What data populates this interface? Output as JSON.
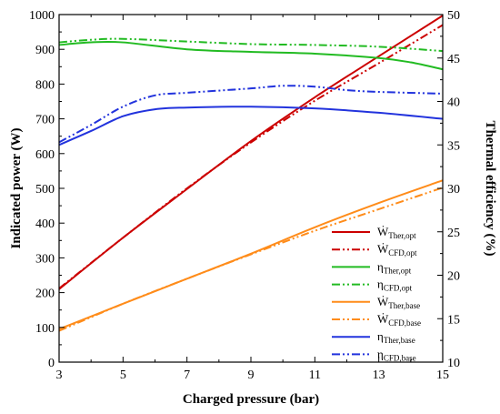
{
  "chart_data": {
    "type": "line",
    "xlabel": "Charged pressure (bar)",
    "ylabel": "Indicated power (W)",
    "y2label": "Thermal efficiency (%)",
    "xlim": [
      3,
      15
    ],
    "ylim": [
      0,
      1000
    ],
    "y2lim": [
      10,
      50
    ],
    "xticks": [
      "3",
      "5",
      "7",
      "9",
      "11",
      "13",
      "15"
    ],
    "yticks": [
      "0",
      "100",
      "200",
      "300",
      "400",
      "500",
      "600",
      "700",
      "800",
      "900",
      "1000"
    ],
    "y2ticks": [
      "10",
      "15",
      "20",
      "25",
      "30",
      "35",
      "40",
      "45",
      "50"
    ],
    "grid": false,
    "legend_position": "bottom-right",
    "series": [
      {
        "name": "Ẇ",
        "sub": "Ther,opt",
        "axis": "left",
        "color": "#cc0000",
        "dash": "solid",
        "x": [
          3,
          5,
          7,
          9,
          11,
          13,
          15
        ],
        "y": [
          210,
          358,
          498,
          636,
          762,
          880,
          997
        ]
      },
      {
        "name": "Ẇ",
        "sub": "CFD,opt",
        "axis": "left",
        "color": "#cc0000",
        "dash": "dashdotdot",
        "x": [
          3,
          5,
          7,
          9,
          11,
          13,
          15
        ],
        "y": [
          212,
          358,
          500,
          632,
          752,
          860,
          970
        ]
      },
      {
        "name": "η",
        "sub": "Ther,opt",
        "axis": "right",
        "color": "#22bb22",
        "dash": "solid",
        "x": [
          3,
          4,
          5,
          7,
          9,
          11,
          13,
          14,
          15
        ],
        "y": [
          46.5,
          46.8,
          46.8,
          46.0,
          45.7,
          45.5,
          45.0,
          44.5,
          43.7
        ]
      },
      {
        "name": "η",
        "sub": "CFD,opt",
        "axis": "right",
        "color": "#22bb22",
        "dash": "dashdotdot",
        "x": [
          3,
          4,
          5,
          7,
          9,
          11,
          13,
          15
        ],
        "y": [
          46.8,
          47.1,
          47.2,
          46.9,
          46.6,
          46.5,
          46.3,
          45.8
        ]
      },
      {
        "name": "Ẇ",
        "sub": "Ther,base",
        "axis": "left",
        "color": "#ff8c1a",
        "dash": "solid",
        "x": [
          3,
          5,
          7,
          9,
          11,
          13,
          15
        ],
        "y": [
          95,
          168,
          240,
          312,
          388,
          458,
          523
        ]
      },
      {
        "name": "Ẇ",
        "sub": "CFD,base",
        "axis": "left",
        "color": "#ff8c1a",
        "dash": "dashdotdot",
        "x": [
          3,
          5,
          7,
          9,
          11,
          13,
          15
        ],
        "y": [
          90,
          168,
          240,
          310,
          378,
          440,
          502
        ]
      },
      {
        "name": "η",
        "sub": "Ther,base",
        "axis": "right",
        "color": "#2233dd",
        "dash": "solid",
        "x": [
          3,
          4,
          5,
          6,
          7,
          9,
          11,
          13,
          15
        ],
        "y": [
          35.0,
          36.6,
          38.3,
          39.1,
          39.3,
          39.4,
          39.2,
          38.7,
          38.0
        ]
      },
      {
        "name": "η",
        "sub": "CFD,base",
        "axis": "right",
        "color": "#2233dd",
        "dash": "dashdotdot",
        "x": [
          3,
          4,
          5,
          6,
          7,
          9,
          10,
          11,
          12,
          13,
          15
        ],
        "y": [
          35.3,
          37.3,
          39.4,
          40.7,
          41.0,
          41.5,
          41.8,
          41.7,
          41.3,
          41.1,
          40.9
        ]
      }
    ]
  }
}
